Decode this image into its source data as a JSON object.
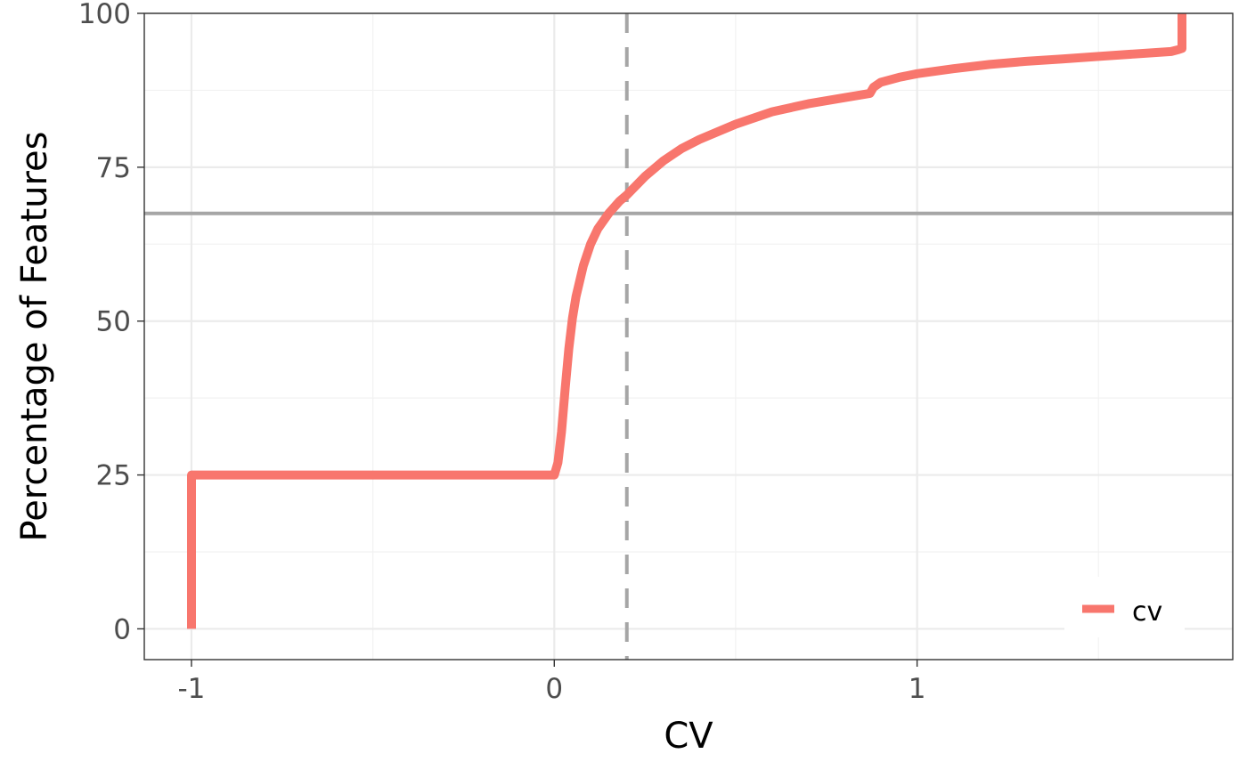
{
  "chart_data": {
    "type": "line",
    "title": "",
    "xlabel": "CV",
    "ylabel": "Percentage of Features",
    "xlim": [
      -1.13,
      1.87
    ],
    "ylim": [
      -5,
      100
    ],
    "x_ticks": [
      -1,
      0,
      1
    ],
    "x_tick_labels": [
      "-1",
      "0",
      "1"
    ],
    "y_ticks": [
      0,
      25,
      50,
      75,
      100
    ],
    "y_tick_labels": [
      "0",
      "25",
      "50",
      "75",
      "100"
    ],
    "grid": true,
    "legend": {
      "position": "bottom-right",
      "entries": [
        "cv"
      ]
    },
    "series": [
      {
        "name": "cv",
        "color": "#f8766d",
        "x": [
          -1,
          -1,
          0,
          0.01,
          0.02,
          0.03,
          0.04,
          0.05,
          0.06,
          0.08,
          0.1,
          0.12,
          0.15,
          0.18,
          0.2,
          0.25,
          0.3,
          0.35,
          0.4,
          0.5,
          0.6,
          0.7,
          0.8,
          0.87,
          0.88,
          0.9,
          0.95,
          1.0,
          1.1,
          1.2,
          1.3,
          1.4,
          1.5,
          1.6,
          1.7,
          1.72,
          1.73,
          1.73
        ],
        "y": [
          0,
          25,
          25,
          27,
          32,
          39,
          45.5,
          50.5,
          54,
          59,
          62.5,
          65,
          67.5,
          69.5,
          70.5,
          73.5,
          76,
          78,
          79.5,
          82,
          84,
          85.3,
          86.3,
          87,
          88,
          88.8,
          89.6,
          90.2,
          91,
          91.7,
          92.2,
          92.6,
          93,
          93.4,
          93.8,
          94.1,
          94.3,
          100
        ]
      }
    ],
    "reference_lines": {
      "horizontal": {
        "y": 67.5,
        "color": "#a6a6a6",
        "style": "solid"
      },
      "vertical": {
        "x": 0.2,
        "color": "#a6a6a6",
        "style": "dashed"
      }
    }
  }
}
